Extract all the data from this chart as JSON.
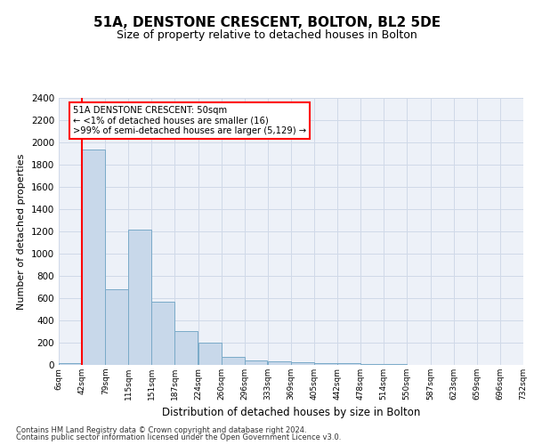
{
  "title": "51A, DENSTONE CRESCENT, BOLTON, BL2 5DE",
  "subtitle": "Size of property relative to detached houses in Bolton",
  "xlabel": "Distribution of detached houses by size in Bolton",
  "ylabel": "Number of detached properties",
  "bar_color": "#c8d8ea",
  "bar_edge_color": "#7aaac8",
  "bins": [
    6,
    42,
    79,
    115,
    151,
    187,
    224,
    260,
    296,
    333,
    369,
    405,
    442,
    478,
    514,
    550,
    587,
    623,
    659,
    696,
    732
  ],
  "bin_labels": [
    "6sqm",
    "42sqm",
    "79sqm",
    "115sqm",
    "151sqm",
    "187sqm",
    "224sqm",
    "260sqm",
    "296sqm",
    "333sqm",
    "369sqm",
    "405sqm",
    "442sqm",
    "478sqm",
    "514sqm",
    "550sqm",
    "587sqm",
    "623sqm",
    "659sqm",
    "696sqm",
    "732sqm"
  ],
  "values": [
    16,
    1940,
    680,
    1220,
    570,
    305,
    200,
    75,
    40,
    30,
    25,
    20,
    15,
    10,
    5,
    3,
    2,
    1,
    1,
    1
  ],
  "ylim": [
    0,
    2400
  ],
  "yticks": [
    0,
    200,
    400,
    600,
    800,
    1000,
    1200,
    1400,
    1600,
    1800,
    2000,
    2200,
    2400
  ],
  "red_line_x": 42,
  "annotation_text": "51A DENSTONE CRESCENT: 50sqm\n← <1% of detached houses are smaller (16)\n>99% of semi-detached houses are larger (5,129) →",
  "footer1": "Contains HM Land Registry data © Crown copyright and database right 2024.",
  "footer2": "Contains public sector information licensed under the Open Government Licence v3.0.",
  "grid_color": "#d0d9e8",
  "background_color": "#edf1f8"
}
